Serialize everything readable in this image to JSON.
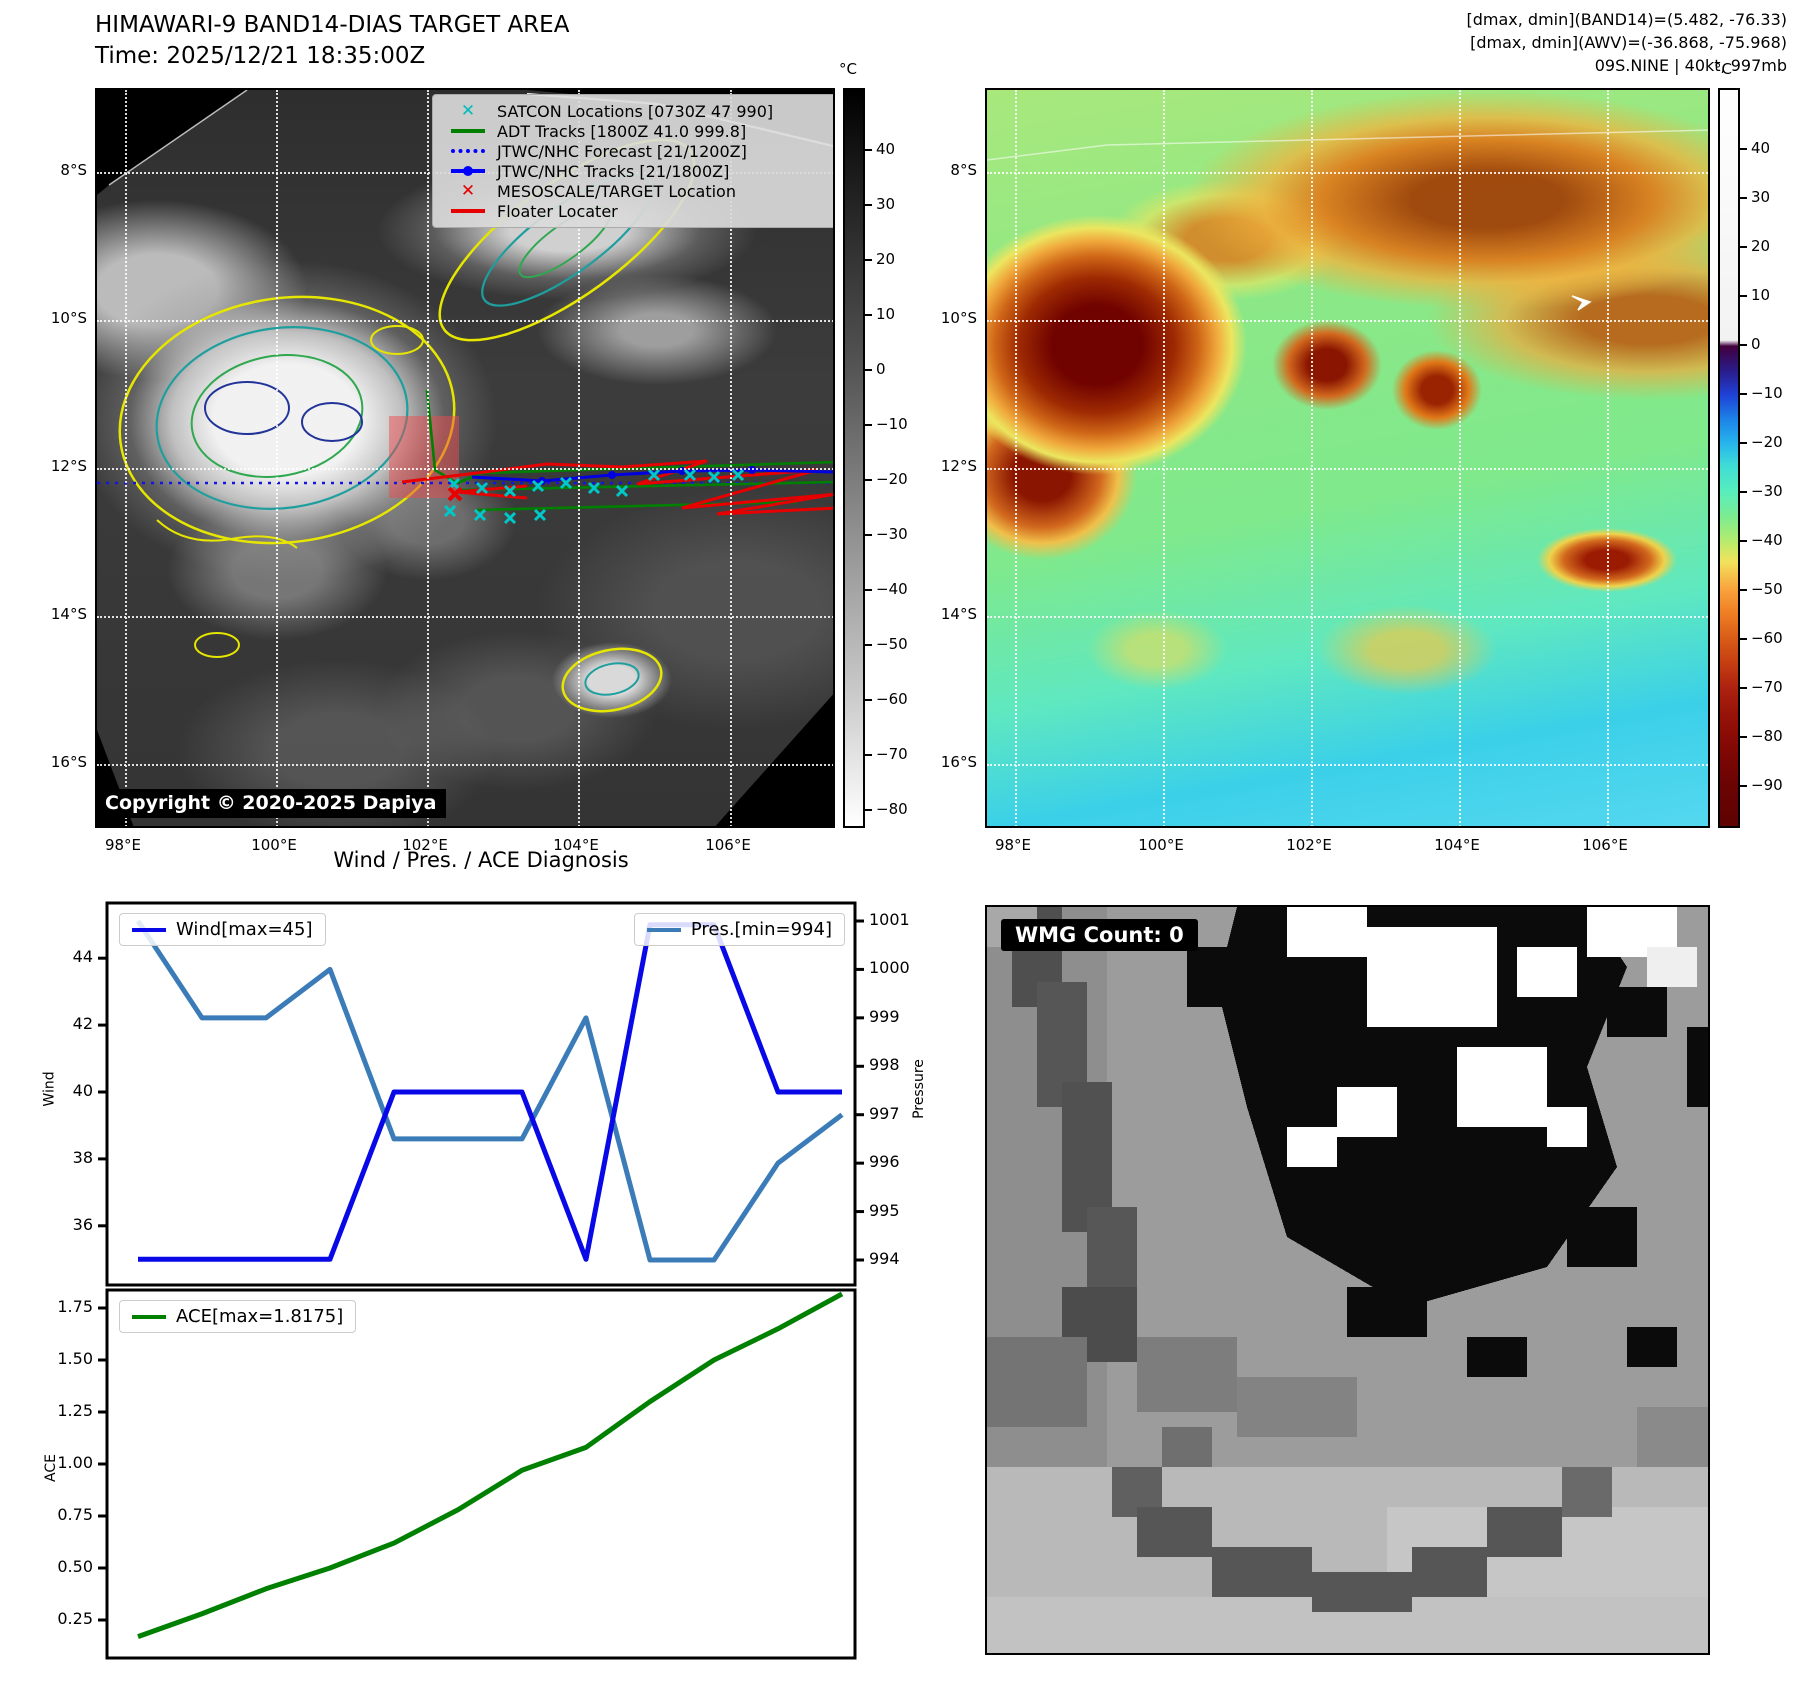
{
  "header": {
    "title_line1": "HIMAWARI-9 BAND14-DIAS TARGET AREA",
    "title_line2": "Time: 2025/12/21 18:35:00Z",
    "info_line1": "[dmax, dmin](BAND14)=(5.482, -76.33)",
    "info_line2": "[dmax, dmin](AWV)=(-36.868, -75.968)",
    "info_line3": "09S.NINE | 40kt, 997mb"
  },
  "left_map": {
    "lat_ticks": [
      "8°S",
      "10°S",
      "12°S",
      "14°S",
      "16°S"
    ],
    "lon_ticks": [
      "98°E",
      "100°E",
      "102°E",
      "104°E",
      "106°E"
    ],
    "colorbar": {
      "unit": "°C",
      "ticks": [
        "40",
        "30",
        "20",
        "10",
        "0",
        "−10",
        "−20",
        "−30",
        "−40",
        "−50",
        "−60",
        "−70",
        "−80"
      ]
    },
    "copyright": "Copyright © 2020-2025 Dapiya",
    "legend": {
      "items": [
        {
          "label": "SATCON Locations [0730Z 47 990]",
          "marker": "x",
          "color": "#00bdbd"
        },
        {
          "label": "ADT Tracks [1800Z 41.0 999.8]",
          "marker": "line",
          "color": "#008000"
        },
        {
          "label": "JTWC/NHC Forecast [21/1200Z]",
          "marker": "dotted",
          "color": "#0000ff"
        },
        {
          "label": "JTWC/NHC Tracks [21/1800Z]",
          "marker": "line-dot",
          "color": "#0000ff"
        },
        {
          "label": "MESOSCALE/TARGET Location",
          "marker": "x",
          "color": "#e60000"
        },
        {
          "label": "Floater Locater",
          "marker": "line",
          "color": "#e60000"
        }
      ]
    }
  },
  "right_map": {
    "lat_ticks": [
      "8°S",
      "10°S",
      "12°S",
      "14°S",
      "16°S"
    ],
    "lon_ticks": [
      "98°E",
      "100°E",
      "102°E",
      "104°E",
      "106°E"
    ],
    "colorbar": {
      "unit": "°C",
      "ticks": [
        "40",
        "30",
        "20",
        "10",
        "0",
        "−10",
        "−20",
        "−30",
        "−40",
        "−50",
        "−60",
        "−70",
        "−80",
        "−90"
      ]
    }
  },
  "diagnosis": {
    "title": "Wind / Pres. / ACE Diagnosis",
    "wind_axis_label": "Wind",
    "pressure_axis_label": "Pressure",
    "ace_axis_label": "ACE"
  },
  "wmg": {
    "label": "WMG Count: 0"
  },
  "chart_data": [
    {
      "type": "heatmap",
      "name": "band14-ir-satellite-map",
      "title": "HIMAWARI-9 BAND14-DIAS TARGET AREA",
      "subtitle": "Time: 2025/12/21 18:35:00Z",
      "x_tick_labels": [
        "98°E",
        "100°E",
        "102°E",
        "104°E",
        "106°E"
      ],
      "y_tick_labels": [
        "8°S",
        "10°S",
        "12°S",
        "14°S",
        "16°S"
      ],
      "colorbar": {
        "unit": "°C",
        "range": [
          40,
          -80
        ],
        "tick_step": 10,
        "scale": "grayscale black(warm)→white(cold)"
      },
      "legend_entries": [
        "SATCON Locations [0730Z 47 990]",
        "ADT Tracks [1800Z 41.0 999.8]",
        "JTWC/NHC Forecast [21/1200Z]",
        "JTWC/NHC Tracks [21/1800Z]",
        "MESOSCALE/TARGET Location",
        "Floater Locater"
      ],
      "annotations": [
        "Copyright © 2020-2025 Dapiya"
      ]
    },
    {
      "type": "heatmap",
      "name": "awv-enhanced-ir-map",
      "x_tick_labels": [
        "98°E",
        "100°E",
        "102°E",
        "104°E",
        "106°E"
      ],
      "y_tick_labels": [
        "8°S",
        "10°S",
        "12°S",
        "14°S",
        "16°S"
      ],
      "colorbar": {
        "unit": "°C",
        "range": [
          40,
          -90
        ],
        "tick_step": 10,
        "scale": "white 40..0, purple→blue→cyan→green→yellow→orange→dark red 0..−90"
      }
    },
    {
      "type": "line",
      "name": "wind-pressure-chart",
      "title": "Wind / Pres. / ACE Diagnosis",
      "x": [
        1,
        2,
        3,
        4,
        5,
        6,
        7,
        8,
        9,
        10,
        11,
        12
      ],
      "series": [
        {
          "name": "Wind[max=45]",
          "axis": "left",
          "color": "#0909e8",
          "values": [
            35,
            35,
            35,
            35,
            40,
            40,
            40,
            35,
            45,
            45,
            40,
            40
          ]
        },
        {
          "name": "Pres.[min=994]",
          "axis": "right",
          "color": "#3b7cb8",
          "values": [
            1001,
            999,
            999,
            1000,
            996.5,
            996.5,
            996.5,
            999,
            994,
            994,
            996,
            997
          ]
        }
      ],
      "left_axis": {
        "label": "Wind",
        "ticks": [
          "44",
          "42",
          "40",
          "38",
          "36"
        ],
        "range": [
          34.2,
          45.6
        ]
      },
      "right_axis": {
        "label": "Pressure",
        "ticks": [
          "1001",
          "1000",
          "999",
          "998",
          "997",
          "996",
          "995",
          "994"
        ],
        "range": [
          993.5,
          1001.4
        ]
      },
      "legend_left": "Wind[max=45]",
      "legend_right": "Pres.[min=994]"
    },
    {
      "type": "line",
      "name": "ace-chart",
      "x": [
        1,
        2,
        3,
        4,
        5,
        6,
        7,
        8,
        9,
        10,
        11,
        12
      ],
      "series": [
        {
          "name": "ACE[max=1.8175]",
          "axis": "left",
          "color": "#008000",
          "values": [
            0.17,
            0.28,
            0.4,
            0.5,
            0.62,
            0.78,
            0.97,
            1.08,
            1.3,
            1.5,
            1.65,
            1.8175
          ]
        }
      ],
      "left_axis": {
        "label": "ACE",
        "ticks": [
          "1.75",
          "1.50",
          "1.25",
          "1.00",
          "0.75",
          "0.50",
          "0.25"
        ],
        "range": [
          0.05,
          1.88
        ]
      },
      "legend_left": "ACE[max=1.8175]"
    }
  ],
  "colors": {
    "wind_line": "#0909e8",
    "pressure_line": "#3b7cb8",
    "ace_line": "#008000",
    "satcon_marker": "#00bdbd",
    "adt_track": "#008000",
    "jtwc_track": "#0000ff",
    "floater_track": "#e60000",
    "target_box_fill": "rgba(235,75,75,0.5)"
  }
}
